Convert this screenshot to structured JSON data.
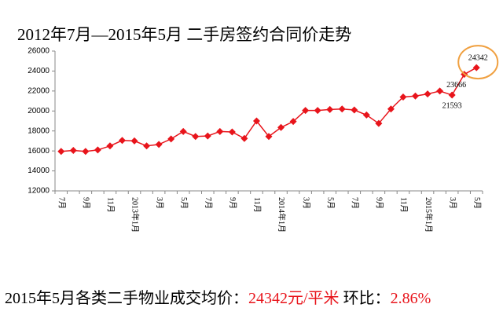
{
  "chart_data": {
    "type": "line",
    "title": "2012年7月—2015年5月  二手房签约合同价走势",
    "categories": [
      "7月",
      null,
      "9月",
      null,
      "11月",
      null,
      "2013年1月",
      null,
      "3月",
      null,
      "5月",
      null,
      "7月",
      null,
      "9月",
      null,
      "11月",
      null,
      "2014年1月",
      null,
      "3月",
      null,
      "5月",
      null,
      "7月",
      null,
      "9月",
      null,
      "11月",
      null,
      "2015年1月",
      null,
      "3月",
      null,
      "5月"
    ],
    "values": [
      15950,
      16050,
      15950,
      16100,
      16500,
      17050,
      17000,
      16500,
      16650,
      17200,
      17950,
      17450,
      17500,
      17950,
      17900,
      17250,
      19000,
      17450,
      18350,
      18950,
      20050,
      20050,
      20150,
      20200,
      20100,
      19600,
      18750,
      20200,
      21400,
      21500,
      21700,
      22000,
      21593,
      23666,
      24342
    ],
    "value_labels": [
      null,
      null,
      null,
      null,
      null,
      null,
      null,
      null,
      null,
      null,
      null,
      null,
      null,
      null,
      null,
      null,
      null,
      null,
      null,
      null,
      null,
      null,
      null,
      null,
      null,
      null,
      null,
      null,
      null,
      null,
      null,
      null,
      "21593",
      "23666",
      "24342"
    ],
    "color": "#e8141b",
    "ylim": [
      12000,
      26000
    ],
    "yticks": [
      12000,
      14000,
      16000,
      18000,
      20000,
      22000,
      24000,
      26000
    ]
  },
  "footer": [
    {
      "text": "2015年5月各类二手物业成交均价：",
      "color": "#000000"
    },
    {
      "text": "24342元/平米",
      "color": "#e8141b"
    },
    {
      "text": "  环比：",
      "color": "#000000"
    },
    {
      "text": "2.86%",
      "color": "#e8141b"
    }
  ]
}
